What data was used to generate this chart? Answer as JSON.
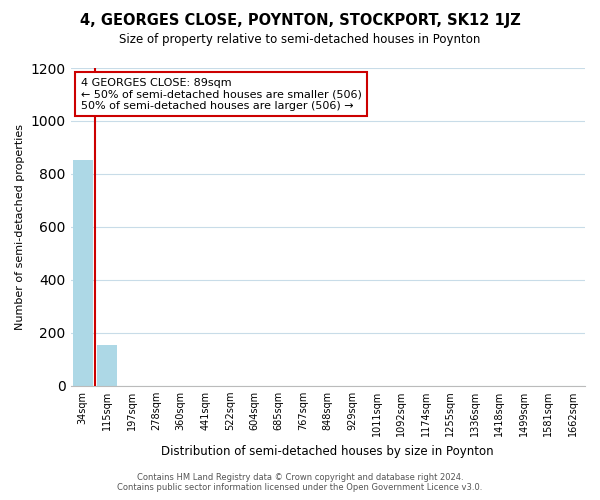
{
  "title": "4, GEORGES CLOSE, POYNTON, STOCKPORT, SK12 1JZ",
  "subtitle": "Size of property relative to semi-detached houses in Poynton",
  "xlabel": "Distribution of semi-detached houses by size in Poynton",
  "ylabel": "Number of semi-detached properties",
  "bar_labels": [
    "34sqm",
    "115sqm",
    "197sqm",
    "278sqm",
    "360sqm",
    "441sqm",
    "522sqm",
    "604sqm",
    "685sqm",
    "767sqm",
    "848sqm",
    "929sqm",
    "1011sqm",
    "1092sqm",
    "1174sqm",
    "1255sqm",
    "1336sqm",
    "1418sqm",
    "1499sqm",
    "1581sqm",
    "1662sqm"
  ],
  "bar_values": [
    853,
    155,
    0,
    0,
    0,
    0,
    0,
    0,
    0,
    0,
    0,
    0,
    0,
    0,
    0,
    0,
    0,
    0,
    0,
    0,
    0
  ],
  "bar_color": "#add8e6",
  "highlight_line_color": "#cc0000",
  "annotation_title": "4 GEORGES CLOSE: 89sqm",
  "annotation_line1": "← 50% of semi-detached houses are smaller (506)",
  "annotation_line2": "50% of semi-detached houses are larger (506) →",
  "annotation_box_color": "#ffffff",
  "annotation_box_edge": "#cc0000",
  "ylim": [
    0,
    1200
  ],
  "yticks": [
    0,
    200,
    400,
    600,
    800,
    1000,
    1200
  ],
  "grid_color": "#c8dce8",
  "background_color": "#ffffff",
  "footer_line1": "Contains HM Land Registry data © Crown copyright and database right 2024.",
  "footer_line2": "Contains public sector information licensed under the Open Government Licence v3.0."
}
